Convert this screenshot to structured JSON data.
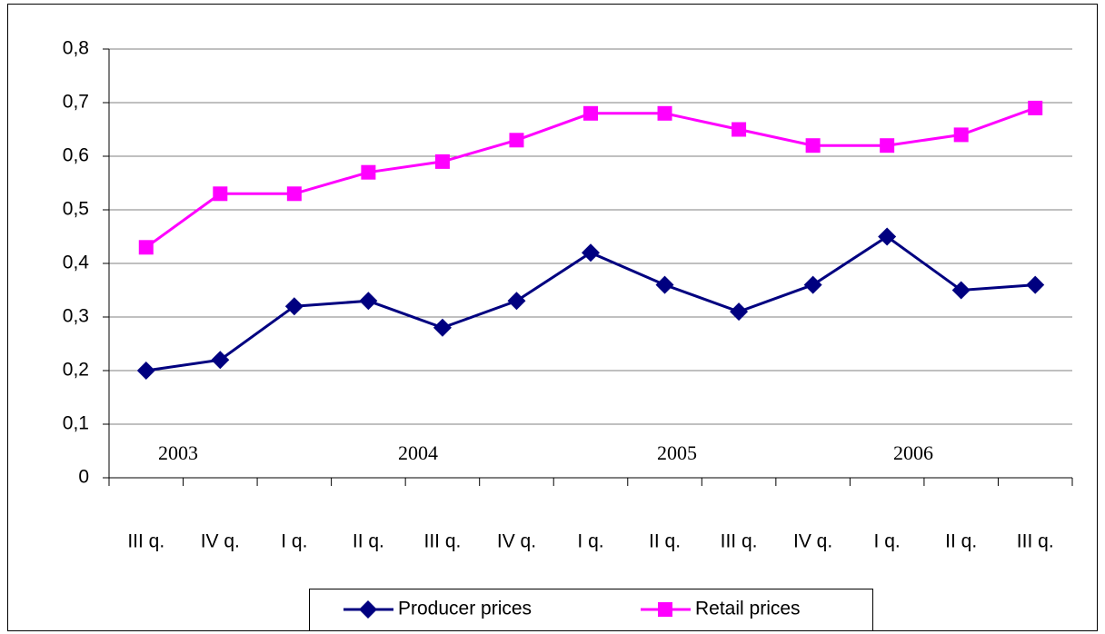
{
  "chart_data": {
    "type": "line",
    "categories": [
      "III q.",
      "IV q.",
      "I q.",
      "II q.",
      "III q.",
      "IV q.",
      "I q.",
      "II q.",
      "III q.",
      "IV q.",
      "I q.",
      "II q.",
      "III q."
    ],
    "annotations": [
      "2003",
      "2004",
      "2005",
      "2006"
    ],
    "series": [
      {
        "name": "Producer prices",
        "color": "#000080",
        "marker": "diamond",
        "values": [
          0.2,
          0.22,
          0.32,
          0.33,
          0.28,
          0.33,
          0.42,
          0.36,
          0.31,
          0.36,
          0.45,
          0.35,
          0.36
        ]
      },
      {
        "name": "Retail prices",
        "color": "#ff00ff",
        "marker": "square",
        "values": [
          0.43,
          0.53,
          0.53,
          0.57,
          0.59,
          0.63,
          0.68,
          0.68,
          0.65,
          0.62,
          0.62,
          0.64,
          0.69
        ]
      }
    ],
    "ylim": [
      0,
      0.8
    ],
    "yticks": [
      0,
      {
        "value": 0.1,
        "label": "0,1"
      },
      {
        "value": 0.2,
        "label": "0,2"
      },
      {
        "value": 0.3,
        "label": "0,3"
      },
      {
        "value": 0.4,
        "label": "0,4"
      },
      {
        "value": 0.5,
        "label": "0,5"
      },
      {
        "value": 0.6,
        "label": "0,6"
      },
      {
        "value": 0.7,
        "label": "0,7"
      },
      {
        "value": 0.8,
        "label": "0,8"
      }
    ],
    "grid": true,
    "legend": "bottom"
  }
}
